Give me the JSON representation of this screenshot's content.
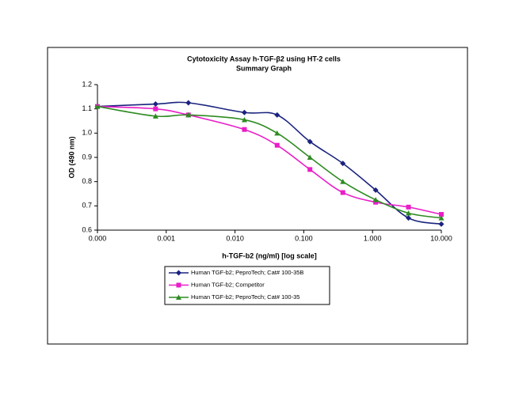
{
  "chart_data": {
    "type": "line",
    "title": "Cytotoxicity Assay h-TGF-β2 using HT-2 cells",
    "subtitle": "Summary Graph",
    "x_label": "h-TGF-b2 (ng/ml) [log scale]",
    "y_label": "OD (490 nm)",
    "x_scale": "log",
    "smooth": true,
    "x": [
      0.0001,
      0.0007,
      0.0021,
      0.0137,
      0.041,
      0.123,
      0.37,
      1.11,
      3.33,
      10
    ],
    "series": [
      {
        "name": "Human TGF-b2; PeproTech; Cat# 100-35B",
        "color": "#1a237e",
        "marker": "diamond",
        "values": [
          1.11,
          1.12,
          1.125,
          1.085,
          1.075,
          0.965,
          0.875,
          0.765,
          0.65,
          0.625
        ]
      },
      {
        "name": "Human TGF-b2; Competitor",
        "color": "#e91ec8",
        "marker": "square",
        "values": [
          1.11,
          1.1,
          1.075,
          1.015,
          0.95,
          0.85,
          0.755,
          0.715,
          0.695,
          0.665
        ]
      },
      {
        "name": "Human TGF-b2; PeproTech; Cat# 100-35",
        "color": "#2e8b22",
        "marker": "triangle",
        "values": [
          1.11,
          1.07,
          1.075,
          1.055,
          1.0,
          0.9,
          0.8,
          0.725,
          0.67,
          0.65
        ]
      }
    ],
    "xlim": [
      0.0001,
      10
    ],
    "xticks": [
      {
        "value": 0.0001,
        "label": "0.000"
      },
      {
        "value": 0.001,
        "label": "0.001"
      },
      {
        "value": 0.01,
        "label": "0.010"
      },
      {
        "value": 0.1,
        "label": "0.100"
      },
      {
        "value": 1,
        "label": "1.000"
      },
      {
        "value": 10,
        "label": "10.000"
      }
    ],
    "ylim": [
      0.6,
      1.2
    ],
    "yticks": [
      0.6,
      0.7,
      0.8,
      0.9,
      {
        "value": 1,
        "label": "1.0"
      },
      1.1,
      1.2
    ],
    "legend": "bottom"
  }
}
